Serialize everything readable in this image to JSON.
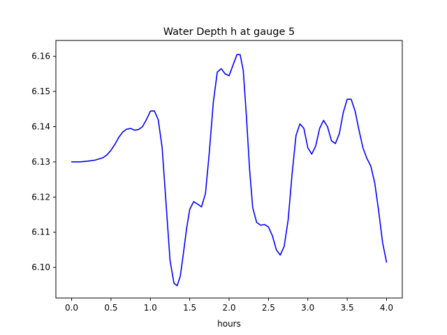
{
  "chart_data": {
    "type": "line",
    "title": "Water Depth h at gauge 5",
    "xlabel": "hours",
    "ylabel": "",
    "xlim": [
      -0.2,
      4.2
    ],
    "ylim": [
      6.0913,
      6.1645
    ],
    "xticks": [
      0.0,
      0.5,
      1.0,
      1.5,
      2.0,
      2.5,
      3.0,
      3.5,
      4.0
    ],
    "xtick_labels": [
      "0.0",
      "0.5",
      "1.0",
      "1.5",
      "2.0",
      "2.5",
      "3.0",
      "3.5",
      "4.0"
    ],
    "yticks": [
      6.1,
      6.11,
      6.12,
      6.13,
      6.14,
      6.15,
      6.16
    ],
    "ytick_labels": [
      "6.10",
      "6.11",
      "6.12",
      "6.13",
      "6.14",
      "6.15",
      "6.16"
    ],
    "grid": false,
    "series": [
      {
        "name": "",
        "color": "#0000ff",
        "x": [
          0.0,
          0.1,
          0.2,
          0.3,
          0.4,
          0.45,
          0.5,
          0.55,
          0.6,
          0.65,
          0.7,
          0.75,
          0.8,
          0.85,
          0.9,
          0.95,
          1.0,
          1.05,
          1.1,
          1.15,
          1.2,
          1.25,
          1.3,
          1.34,
          1.38,
          1.42,
          1.46,
          1.5,
          1.55,
          1.6,
          1.65,
          1.7,
          1.75,
          1.8,
          1.85,
          1.9,
          1.95,
          2.0,
          2.05,
          2.1,
          2.14,
          2.18,
          2.22,
          2.26,
          2.3,
          2.35,
          2.4,
          2.45,
          2.5,
          2.55,
          2.6,
          2.65,
          2.7,
          2.75,
          2.8,
          2.85,
          2.9,
          2.95,
          3.0,
          3.05,
          3.1,
          3.15,
          3.2,
          3.25,
          3.3,
          3.35,
          3.4,
          3.45,
          3.5,
          3.55,
          3.6,
          3.65,
          3.7,
          3.75,
          3.8,
          3.85,
          3.9,
          3.95,
          4.0
        ],
        "y": [
          6.13,
          6.13,
          6.1302,
          6.1305,
          6.1312,
          6.132,
          6.1333,
          6.135,
          6.137,
          6.1385,
          6.1393,
          6.1395,
          6.139,
          6.1392,
          6.14,
          6.142,
          6.1444,
          6.1445,
          6.142,
          6.134,
          6.118,
          6.102,
          6.0955,
          6.0948,
          6.0975,
          6.104,
          6.111,
          6.1165,
          6.1187,
          6.118,
          6.1172,
          6.121,
          6.133,
          6.147,
          6.1555,
          6.1565,
          6.155,
          6.1545,
          6.1575,
          6.1605,
          6.1605,
          6.156,
          6.143,
          6.128,
          6.117,
          6.1128,
          6.112,
          6.1122,
          6.1115,
          6.109,
          6.105,
          6.1035,
          6.106,
          6.1135,
          6.1265,
          6.1375,
          6.1408,
          6.1395,
          6.134,
          6.1322,
          6.1345,
          6.1395,
          6.1418,
          6.14,
          6.136,
          6.1352,
          6.138,
          6.144,
          6.1478,
          6.1478,
          6.1445,
          6.139,
          6.134,
          6.131,
          6.1288,
          6.124,
          6.116,
          6.107,
          6.1015
        ]
      }
    ]
  }
}
